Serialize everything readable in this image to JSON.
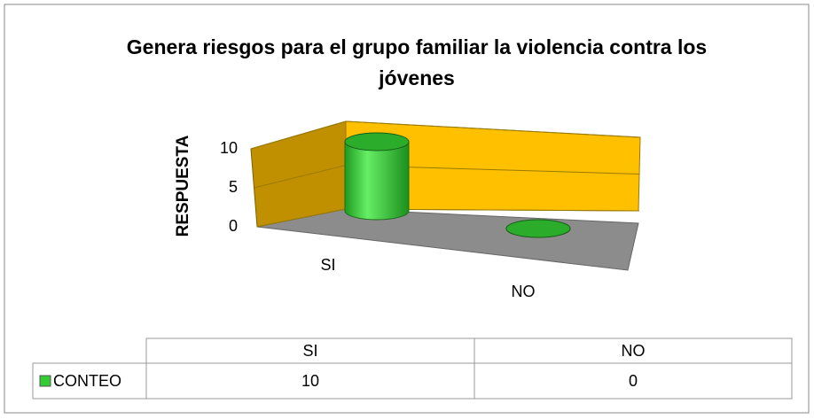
{
  "chart_data": {
    "type": "cylinder3d",
    "title": "Genera riesgos para el grupo familiar la violencia contra los jóvenes",
    "y_label": "RESPUESTA",
    "categories": [
      "SI",
      "NO"
    ],
    "series": [
      {
        "name": "CONTEO",
        "color": "#33cc33",
        "values": [
          10,
          0
        ]
      }
    ],
    "ylim": [
      0,
      10
    ],
    "yticks": [
      0,
      5,
      10
    ],
    "grid": true
  }
}
